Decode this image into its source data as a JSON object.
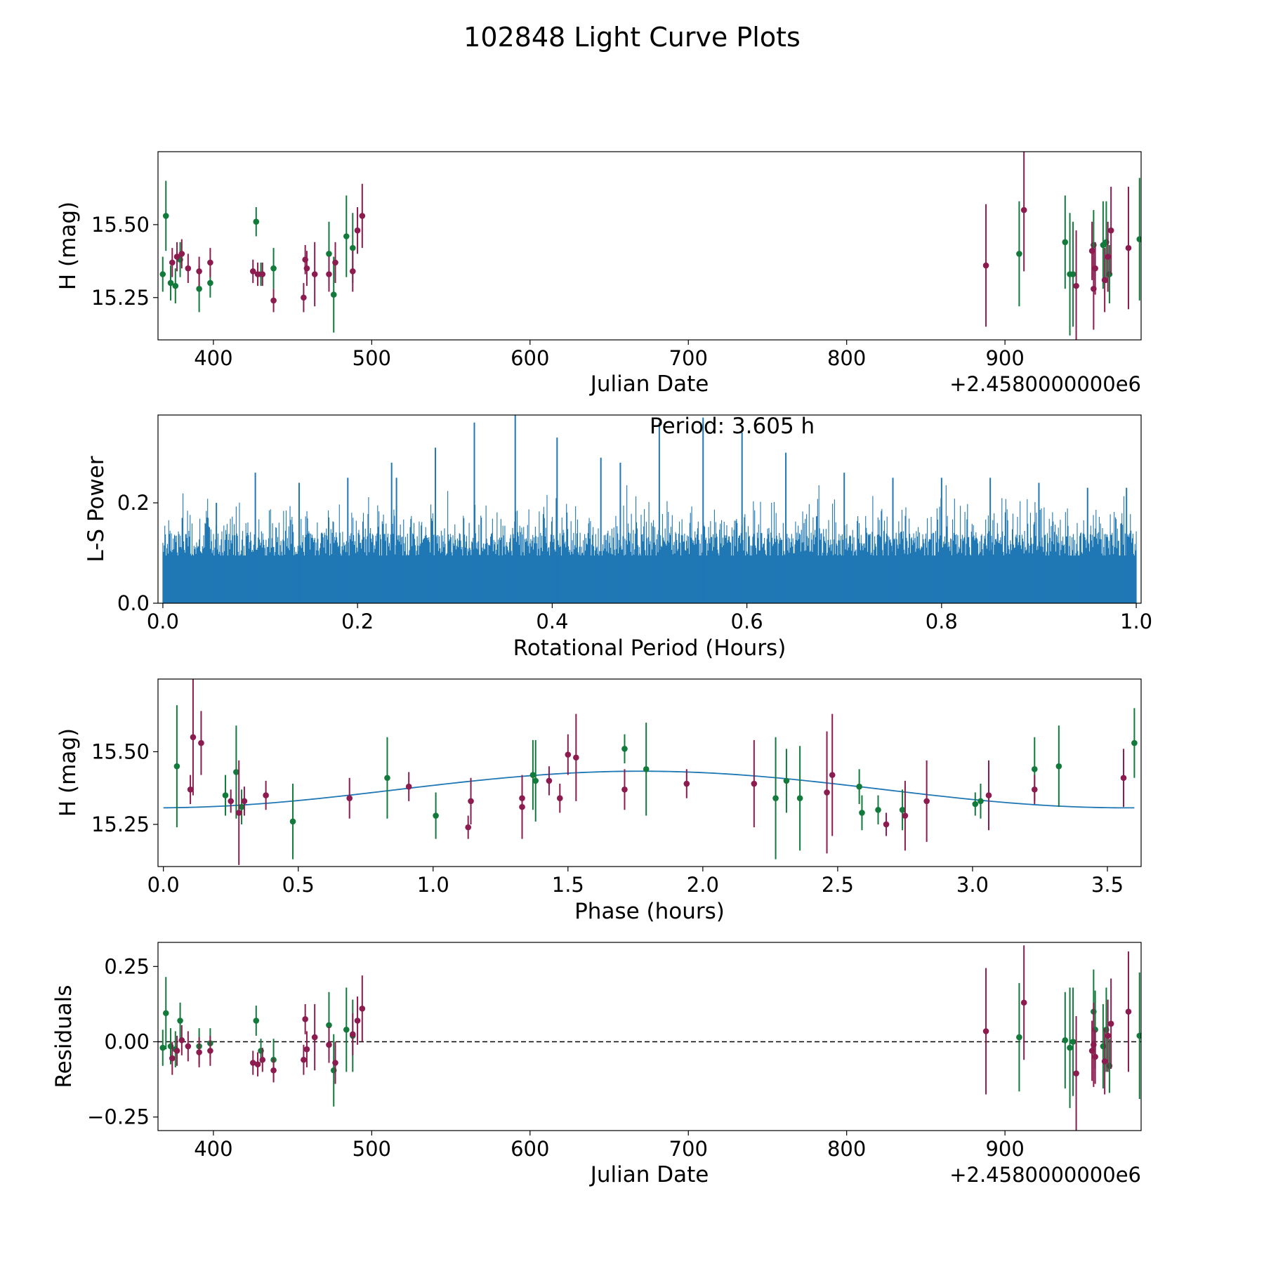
{
  "figure_title": "102848 Light Curve Plots",
  "colors": {
    "green": "#127a3b",
    "magenta": "#8c1b4f",
    "line": "#1f77b4",
    "frame": "#000000"
  },
  "chart_data": [
    {
      "id": "raw",
      "type": "scatter",
      "xlabel": "Julian Date",
      "ylabel": "H (mag)",
      "offset_text": "+2.4580000000e6",
      "xlim": [
        365,
        986
      ],
      "ylim": [
        15.105,
        15.75
      ],
      "xticks": [
        400,
        500,
        600,
        700,
        800,
        900
      ],
      "xtick_labels": [
        "400",
        "500",
        "600",
        "700",
        "800",
        "900"
      ],
      "yticks": [
        15.25,
        15.5
      ],
      "ytick_labels": [
        "15.25",
        "15.50"
      ],
      "series": [
        {
          "name": "green",
          "color": "green",
          "points": [
            [
              368,
              15.33,
              0.06
            ],
            [
              370,
              15.53,
              0.12
            ],
            [
              373,
              15.3,
              0.06
            ],
            [
              376,
              15.29,
              0.06
            ],
            [
              379,
              15.38,
              0.06
            ],
            [
              391,
              15.28,
              0.08
            ],
            [
              398,
              15.3,
              0.05
            ],
            [
              427,
              15.51,
              0.05
            ],
            [
              430,
              15.33,
              0.04
            ],
            [
              438,
              15.35,
              0.07
            ],
            [
              473,
              15.4,
              0.11
            ],
            [
              476,
              15.26,
              0.13
            ],
            [
              484,
              15.46,
              0.14
            ],
            [
              488,
              15.42,
              0.12
            ],
            [
              909,
              15.4,
              0.18
            ],
            [
              938,
              15.44,
              0.16
            ],
            [
              941,
              15.33,
              0.21
            ],
            [
              943,
              15.33,
              0.18
            ],
            [
              956,
              15.43,
              0.12
            ],
            [
              962,
              15.43,
              0.15
            ],
            [
              964,
              15.44,
              0.14
            ],
            [
              966,
              15.33,
              0.1
            ],
            [
              985,
              15.45,
              0.21
            ]
          ]
        },
        {
          "name": "magenta",
          "color": "magenta",
          "points": [
            [
              374,
              15.37,
              0.05
            ],
            [
              377,
              15.39,
              0.05
            ],
            [
              380,
              15.4,
              0.05
            ],
            [
              384,
              15.35,
              0.05
            ],
            [
              391,
              15.34,
              0.05
            ],
            [
              398,
              15.37,
              0.05
            ],
            [
              425,
              15.34,
              0.04
            ],
            [
              428,
              15.33,
              0.04
            ],
            [
              431,
              15.33,
              0.04
            ],
            [
              438,
              15.24,
              0.04
            ],
            [
              457,
              15.25,
              0.05
            ],
            [
              458,
              15.38,
              0.05
            ],
            [
              459,
              15.35,
              0.06
            ],
            [
              464,
              15.33,
              0.11
            ],
            [
              473,
              15.33,
              0.06
            ],
            [
              477,
              15.37,
              0.07
            ],
            [
              488,
              15.34,
              0.07
            ],
            [
              491,
              15.48,
              0.08
            ],
            [
              494,
              15.53,
              0.11
            ],
            [
              888,
              15.36,
              0.21
            ],
            [
              912,
              15.55,
              0.21
            ],
            [
              945,
              15.29,
              0.19
            ],
            [
              955,
              15.41,
              0.1
            ],
            [
              956,
              15.28,
              0.14
            ],
            [
              957,
              15.35,
              0.09
            ],
            [
              963,
              15.31,
              0.11
            ],
            [
              965,
              15.39,
              0.12
            ],
            [
              967,
              15.48,
              0.15
            ],
            [
              978,
              15.42,
              0.21
            ]
          ]
        }
      ]
    },
    {
      "id": "periodogram",
      "type": "line",
      "xlabel": "Rotational Period (Hours)",
      "ylabel": "L-S Power",
      "annotation": "Period: 3.605 h",
      "xlim": [
        -0.005,
        1.005
      ],
      "ylim": [
        0,
        0.375
      ],
      "xticks": [
        0.0,
        0.2,
        0.4,
        0.6,
        0.8,
        1.0
      ],
      "xtick_labels": [
        "0.0",
        "0.2",
        "0.4",
        "0.6",
        "0.8",
        "1.0"
      ],
      "yticks": [
        0.0,
        0.2
      ],
      "ytick_labels": [
        "0.0",
        "0.2"
      ],
      "band_floor": 0.09,
      "x_start": 0.0,
      "x_end": 1.0,
      "samples": 1500,
      "peaks": [
        [
          0.02,
          0.17
        ],
        [
          0.055,
          0.2
        ],
        [
          0.095,
          0.26
        ],
        [
          0.14,
          0.24
        ],
        [
          0.19,
          0.25
        ],
        [
          0.24,
          0.25
        ],
        [
          0.235,
          0.28
        ],
        [
          0.28,
          0.31
        ],
        [
          0.32,
          0.36
        ],
        [
          0.362,
          0.375
        ],
        [
          0.405,
          0.33
        ],
        [
          0.45,
          0.29
        ],
        [
          0.47,
          0.28
        ],
        [
          0.51,
          0.36
        ],
        [
          0.555,
          0.37
        ],
        [
          0.595,
          0.34
        ],
        [
          0.64,
          0.3
        ],
        [
          0.7,
          0.26
        ],
        [
          0.75,
          0.25
        ],
        [
          0.8,
          0.25
        ],
        [
          0.85,
          0.25
        ],
        [
          0.9,
          0.24
        ],
        [
          0.95,
          0.23
        ],
        [
          0.99,
          0.23
        ]
      ]
    },
    {
      "id": "phased",
      "type": "scatter",
      "xlabel": "Phase (hours)",
      "ylabel": "H (mag)",
      "xlim": [
        -0.02,
        3.625
      ],
      "ylim": [
        15.105,
        15.75
      ],
      "xticks": [
        0.0,
        0.5,
        1.0,
        1.5,
        2.0,
        2.5,
        3.0,
        3.5
      ],
      "xtick_labels": [
        "0.0",
        "0.5",
        "1.0",
        "1.5",
        "2.0",
        "2.5",
        "3.0",
        "3.5"
      ],
      "yticks": [
        15.25,
        15.5
      ],
      "ytick_labels": [
        "15.25",
        "15.50"
      ],
      "fit": {
        "mean": 15.37,
        "amplitude": 0.063,
        "peak_phase": 1.77,
        "period_half": 1.8,
        "x_end": 3.6
      },
      "series": [
        {
          "name": "green",
          "color": "green",
          "points": [
            [
              0.05,
              15.45,
              0.21
            ],
            [
              0.23,
              15.35,
              0.07
            ],
            [
              0.27,
              15.43,
              0.16
            ],
            [
              0.29,
              15.31,
              0.06
            ],
            [
              0.48,
              15.26,
              0.13
            ],
            [
              0.83,
              15.41,
              0.14
            ],
            [
              1.01,
              15.28,
              0.08
            ],
            [
              1.37,
              15.42,
              0.12
            ],
            [
              1.38,
              15.4,
              0.14
            ],
            [
              1.71,
              15.51,
              0.05
            ],
            [
              1.79,
              15.44,
              0.16
            ],
            [
              2.27,
              15.34,
              0.21
            ],
            [
              2.31,
              15.4,
              0.11
            ],
            [
              2.36,
              15.34,
              0.18
            ],
            [
              2.58,
              15.38,
              0.06
            ],
            [
              2.59,
              15.29,
              0.06
            ],
            [
              2.65,
              15.3,
              0.05
            ],
            [
              2.74,
              15.3,
              0.07
            ],
            [
              3.01,
              15.32,
              0.04
            ],
            [
              3.03,
              15.33,
              0.06
            ],
            [
              3.23,
              15.44,
              0.11
            ],
            [
              3.32,
              15.45,
              0.14
            ],
            [
              3.6,
              15.53,
              0.12
            ]
          ]
        },
        {
          "name": "magenta",
          "color": "magenta",
          "points": [
            [
              0.1,
              15.37,
              0.05
            ],
            [
              0.11,
              15.55,
              0.2
            ],
            [
              0.14,
              15.53,
              0.11
            ],
            [
              0.25,
              15.33,
              0.04
            ],
            [
              0.28,
              15.29,
              0.18
            ],
            [
              0.3,
              15.33,
              0.05
            ],
            [
              0.38,
              15.35,
              0.05
            ],
            [
              0.69,
              15.34,
              0.07
            ],
            [
              0.91,
              15.38,
              0.05
            ],
            [
              1.13,
              15.24,
              0.04
            ],
            [
              1.14,
              15.33,
              0.08
            ],
            [
              1.33,
              15.34,
              0.05
            ],
            [
              1.33,
              15.31,
              0.11
            ],
            [
              1.43,
              15.4,
              0.05
            ],
            [
              1.47,
              15.34,
              0.05
            ],
            [
              1.5,
              15.49,
              0.07
            ],
            [
              1.53,
              15.48,
              0.15
            ],
            [
              1.71,
              15.37,
              0.07
            ],
            [
              1.94,
              15.39,
              0.05
            ],
            [
              2.19,
              15.39,
              0.15
            ],
            [
              2.46,
              15.36,
              0.21
            ],
            [
              2.48,
              15.42,
              0.21
            ],
            [
              2.68,
              15.25,
              0.04
            ],
            [
              2.75,
              15.28,
              0.12
            ],
            [
              2.83,
              15.33,
              0.14
            ],
            [
              3.06,
              15.35,
              0.12
            ],
            [
              3.23,
              15.37,
              0.05
            ],
            [
              3.56,
              15.41,
              0.1
            ]
          ]
        }
      ]
    },
    {
      "id": "residuals",
      "type": "scatter",
      "xlabel": "Julian Date",
      "ylabel": "Residuals",
      "offset_text": "+2.4580000000e6",
      "xlim": [
        365,
        986
      ],
      "ylim": [
        -0.295,
        0.33
      ],
      "xticks": [
        400,
        500,
        600,
        700,
        800,
        900
      ],
      "xtick_labels": [
        "400",
        "500",
        "600",
        "700",
        "800",
        "900"
      ],
      "yticks": [
        -0.25,
        0.0,
        0.25
      ],
      "ytick_labels": [
        "−0.25",
        "0.00",
        "0.25"
      ],
      "zero_line": 0,
      "series": [
        {
          "name": "green",
          "color": "green",
          "points": [
            [
              368,
              -0.02,
              0.06
            ],
            [
              370,
              0.095,
              0.12
            ],
            [
              373,
              -0.015,
              0.06
            ],
            [
              376,
              -0.025,
              0.06
            ],
            [
              379,
              0.07,
              0.06
            ],
            [
              391,
              -0.015,
              0.06
            ],
            [
              398,
              -0.005,
              0.05
            ],
            [
              427,
              0.07,
              0.05
            ],
            [
              430,
              -0.03,
              0.04
            ],
            [
              438,
              -0.06,
              0.07
            ],
            [
              473,
              0.055,
              0.11
            ],
            [
              476,
              -0.095,
              0.12
            ],
            [
              484,
              0.04,
              0.14
            ],
            [
              488,
              0.02,
              0.12
            ],
            [
              909,
              0.015,
              0.18
            ],
            [
              938,
              0.005,
              0.16
            ],
            [
              941,
              -0.02,
              0.2
            ],
            [
              943,
              0.0,
              0.18
            ],
            [
              956,
              0.1,
              0.14
            ],
            [
              957,
              0.04,
              0.13
            ],
            [
              962,
              -0.015,
              0.14
            ],
            [
              964,
              0.04,
              0.14
            ],
            [
              966,
              -0.08,
              0.09
            ],
            [
              985,
              0.02,
              0.21
            ]
          ]
        },
        {
          "name": "magenta",
          "color": "magenta",
          "points": [
            [
              374,
              -0.055,
              0.055
            ],
            [
              377,
              -0.03,
              0.05
            ],
            [
              380,
              0.005,
              0.05
            ],
            [
              384,
              -0.015,
              0.05
            ],
            [
              391,
              -0.035,
              0.05
            ],
            [
              398,
              -0.03,
              0.05
            ],
            [
              425,
              -0.07,
              0.04
            ],
            [
              428,
              -0.075,
              0.04
            ],
            [
              431,
              -0.06,
              0.04
            ],
            [
              438,
              -0.095,
              0.04
            ],
            [
              457,
              -0.06,
              0.05
            ],
            [
              458,
              0.075,
              0.05
            ],
            [
              459,
              -0.025,
              0.06
            ],
            [
              464,
              0.015,
              0.11
            ],
            [
              473,
              -0.01,
              0.06
            ],
            [
              477,
              -0.07,
              0.07
            ],
            [
              488,
              0.025,
              0.07
            ],
            [
              491,
              0.07,
              0.08
            ],
            [
              494,
              0.11,
              0.11
            ],
            [
              888,
              0.035,
              0.21
            ],
            [
              912,
              0.13,
              0.19
            ],
            [
              945,
              -0.105,
              0.19
            ],
            [
              955,
              -0.03,
              0.1
            ],
            [
              956,
              -0.01,
              0.14
            ],
            [
              957,
              -0.05,
              0.09
            ],
            [
              963,
              -0.065,
              0.11
            ],
            [
              965,
              0.02,
              0.12
            ],
            [
              967,
              0.06,
              0.15
            ],
            [
              978,
              0.1,
              0.2
            ]
          ]
        }
      ]
    }
  ]
}
